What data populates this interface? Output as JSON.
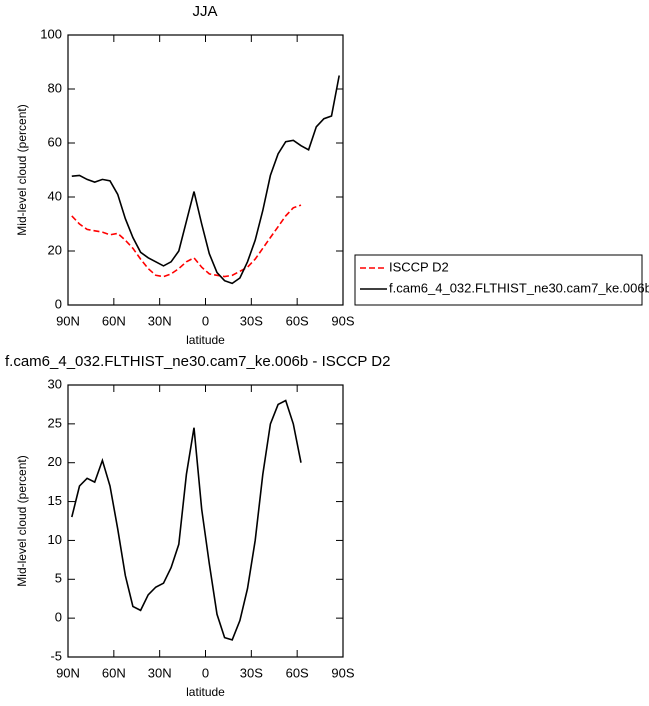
{
  "chart_data": [
    {
      "type": "line",
      "title": "JJA",
      "x_label": "latitude",
      "y_label": "Mid-level cloud (percent)",
      "x": [
        87.5,
        82.5,
        77.5,
        72.5,
        67.5,
        62.5,
        57.5,
        52.5,
        47.5,
        42.5,
        37.5,
        32.5,
        27.5,
        22.5,
        17.5,
        12.5,
        7.5,
        2.5,
        -2.5,
        -7.5,
        -12.5,
        -17.5,
        -22.5,
        -27.5,
        -32.5,
        -37.5,
        -42.5,
        -47.5,
        -52.5,
        -57.5,
        -62.5,
        -67.5,
        -72.5,
        -77.5,
        -82.5,
        -87.5
      ],
      "series": [
        {
          "name": "ISCCP D2",
          "color": "#ff0000",
          "dashed": true,
          "values": [
            33,
            30,
            28,
            27.5,
            27,
            26,
            26.5,
            24,
            21,
            17,
            13.5,
            11,
            10.5,
            11.5,
            13.5,
            16,
            17.5,
            14,
            11.5,
            11,
            10.5,
            11,
            12.5,
            14,
            17,
            21,
            25,
            29,
            33,
            36,
            37,
            null,
            null,
            null,
            null,
            null
          ]
        },
        {
          "name": "f.cam6_4_032.FLTHIST_ne30.cam7_ke.006b",
          "color": "#000000",
          "dashed": false,
          "values": [
            47.7,
            48,
            46.5,
            45.5,
            46.5,
            46,
            41,
            32,
            25,
            19.5,
            17.5,
            16,
            14.5,
            16,
            20,
            31,
            42,
            30,
            19,
            12,
            9,
            8,
            10,
            16,
            24,
            35,
            48,
            56,
            60.5,
            61,
            59,
            57.5,
            66,
            69,
            70,
            85
          ]
        }
      ],
      "xlim": [
        90,
        -90
      ],
      "xticks": [
        {
          "value": 90,
          "label": "90N"
        },
        {
          "value": 60,
          "label": "60N"
        },
        {
          "value": 30,
          "label": "30N"
        },
        0,
        {
          "value": -30,
          "label": "30S"
        },
        {
          "value": -60,
          "label": "60S"
        },
        {
          "value": -90,
          "label": "90S"
        }
      ],
      "ylim": [
        0,
        100
      ],
      "yticks": [
        0,
        20,
        40,
        60,
        80,
        100
      ],
      "legend": "right"
    },
    {
      "type": "line",
      "title": "f.cam6_4_032.FLTHIST_ne30.cam7_ke.006b - ISCCP D2",
      "x_label": "latitude",
      "y_label": "Mid-level cloud (percent)",
      "x": [
        87.5,
        82.5,
        77.5,
        72.5,
        67.5,
        62.5,
        57.5,
        52.5,
        47.5,
        42.5,
        37.5,
        32.5,
        27.5,
        22.5,
        17.5,
        12.5,
        7.5,
        2.5,
        -2.5,
        -7.5,
        -12.5,
        -17.5,
        -22.5,
        -27.5,
        -32.5,
        -37.5,
        -42.5,
        -47.5,
        -52.5,
        -57.5,
        -62.5
      ],
      "series": [
        {
          "color": "#000000",
          "dashed": false,
          "values": [
            13,
            17,
            18,
            17.5,
            20.3,
            17,
            11.5,
            5.5,
            1.5,
            1,
            3,
            4,
            4.5,
            6.5,
            9.5,
            18.5,
            24.5,
            14,
            7,
            0.5,
            -2.5,
            -2.8,
            -0.3,
            3.8,
            10,
            18.5,
            25,
            27.5,
            28,
            25,
            20
          ]
        }
      ],
      "xlim": [
        90,
        -90
      ],
      "xticks": [
        {
          "value": 90,
          "label": "90N"
        },
        {
          "value": 60,
          "label": "60N"
        },
        {
          "value": 30,
          "label": "30N"
        },
        0,
        {
          "value": -30,
          "label": "30S"
        },
        {
          "value": -60,
          "label": "60S"
        },
        {
          "value": -90,
          "label": "90S"
        }
      ],
      "ylim": [
        -5,
        30
      ],
      "yticks": [
        -5,
        0,
        5,
        10,
        15,
        20,
        25,
        30
      ]
    }
  ]
}
